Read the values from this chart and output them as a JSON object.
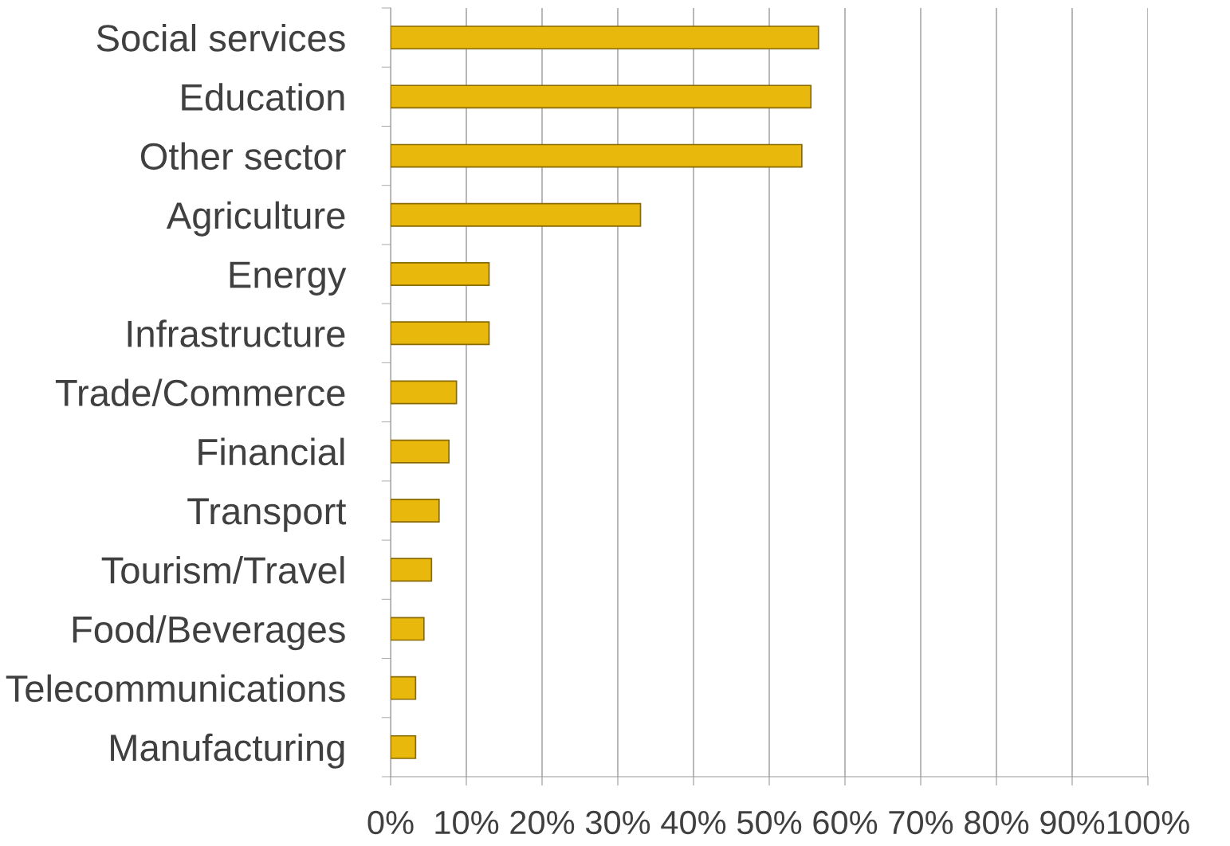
{
  "chart_data": {
    "type": "bar",
    "orientation": "horizontal",
    "categories": [
      "Social services",
      "Education",
      "Other sector",
      "Agriculture",
      "Energy",
      "Infrastructure",
      "Trade/Commerce",
      "Financial",
      "Transport",
      "Tourism/Travel",
      "Food/Beverages",
      "Telecommunications",
      "Manufacturing"
    ],
    "values": [
      56.5,
      55.5,
      54.3,
      33,
      13,
      13,
      8.7,
      7.7,
      6.4,
      5.4,
      4.4,
      3.3,
      3.3
    ],
    "color": "#e8b80c",
    "xlim": [
      0,
      100
    ],
    "xticks": [
      {
        "value": 0,
        "label": "0%"
      },
      {
        "value": 10,
        "label": "10%"
      },
      {
        "value": 20,
        "label": "20%"
      },
      {
        "value": 30,
        "label": "30%"
      },
      {
        "value": 40,
        "label": "40%"
      },
      {
        "value": 50,
        "label": "50%"
      },
      {
        "value": 60,
        "label": "60%"
      },
      {
        "value": 70,
        "label": "70%"
      },
      {
        "value": 80,
        "label": "80%"
      },
      {
        "value": 90,
        "label": "90%"
      },
      {
        "value": 100,
        "label": "100%"
      }
    ],
    "grid": "x",
    "legend": false
  }
}
